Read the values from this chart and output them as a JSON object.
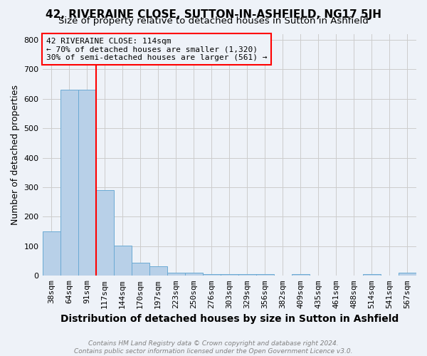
{
  "title": "42, RIVERAINE CLOSE, SUTTON-IN-ASHFIELD, NG17 5JH",
  "subtitle": "Size of property relative to detached houses in Sutton in Ashfield",
  "xlabel": "Distribution of detached houses by size in Sutton in Ashfield",
  "ylabel": "Number of detached properties",
  "footer1": "Contains HM Land Registry data © Crown copyright and database right 2024.",
  "footer2": "Contains public sector information licensed under the Open Government Licence v3.0.",
  "bar_labels": [
    "38sqm",
    "64sqm",
    "91sqm",
    "117sqm",
    "144sqm",
    "170sqm",
    "197sqm",
    "223sqm",
    "250sqm",
    "276sqm",
    "303sqm",
    "329sqm",
    "356sqm",
    "382sqm",
    "409sqm",
    "435sqm",
    "461sqm",
    "488sqm",
    "514sqm",
    "541sqm",
    "567sqm"
  ],
  "bar_values": [
    150,
    630,
    630,
    290,
    103,
    45,
    32,
    10,
    10,
    5,
    5,
    5,
    5,
    0,
    5,
    0,
    0,
    0,
    5,
    0,
    10
  ],
  "bar_color": "#b8d0e8",
  "bar_edge_color": "#6aaad4",
  "property_line_color": "red",
  "property_line_x": 2.5,
  "annotation_text": "42 RIVERAINE CLOSE: 114sqm\n← 70% of detached houses are smaller (1,320)\n30% of semi-detached houses are larger (561) →",
  "annotation_box_color": "red",
  "ylim": [
    0,
    820
  ],
  "yticks": [
    0,
    100,
    200,
    300,
    400,
    500,
    600,
    700,
    800
  ],
  "grid_color": "#cccccc",
  "bg_color": "#eef2f8",
  "title_fontsize": 11,
  "subtitle_fontsize": 9.5,
  "axis_label_fontsize": 9,
  "xlabel_fontsize": 10,
  "tick_fontsize": 8,
  "footer_fontsize": 6.5
}
